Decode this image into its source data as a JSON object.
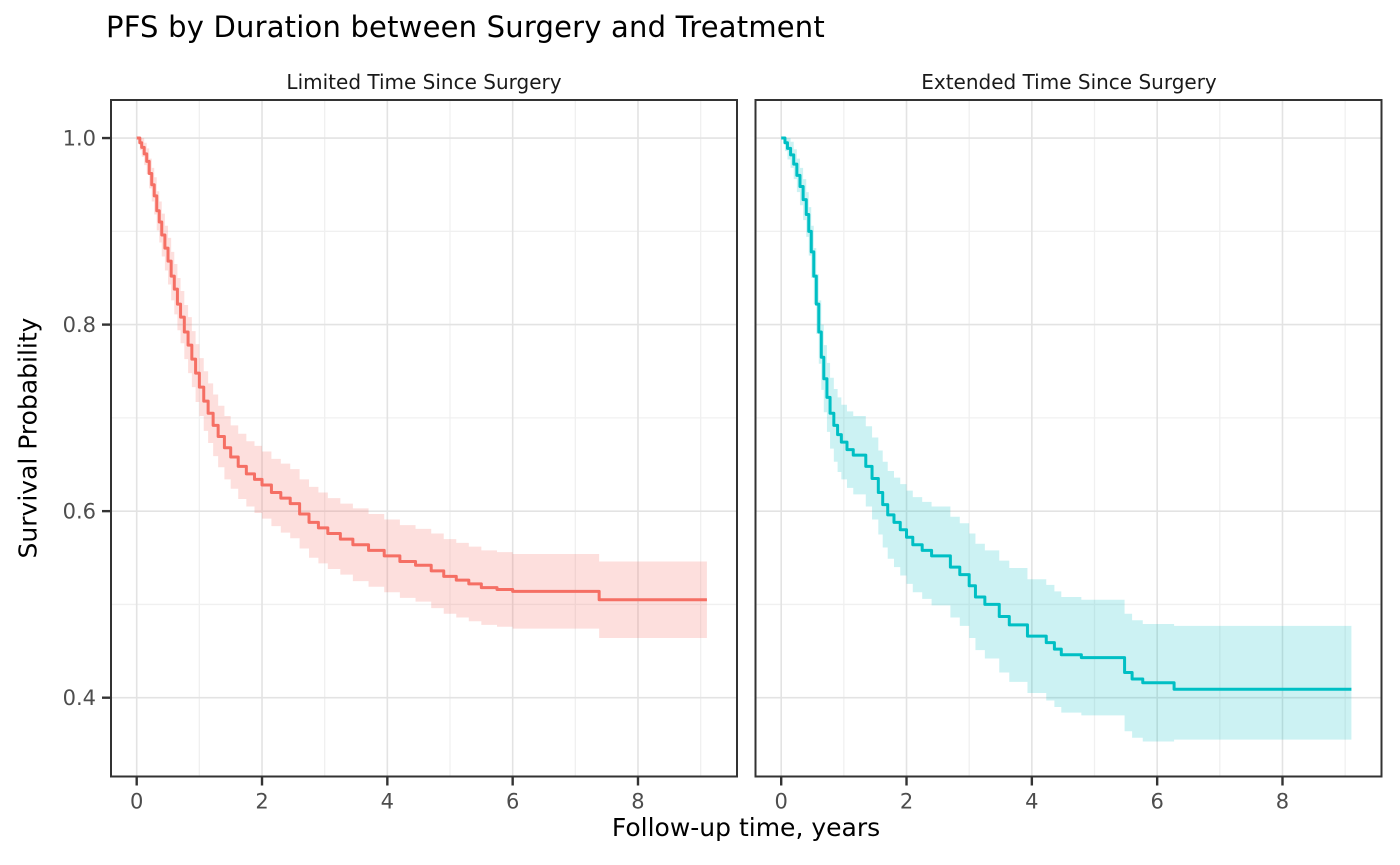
{
  "title": "PFS by Duration between Surgery and Treatment",
  "axes": {
    "x_label": "Follow-up time, years",
    "y_label": "Survival Probability"
  },
  "colors": {
    "background": "#ffffff",
    "panel_border": "#333333",
    "grid_major": "#e3e3e3",
    "grid_minor": "#f0f0f0",
    "tick_mark": "#333333",
    "tick_text": "#4d4d4d",
    "text": "#000000"
  },
  "chart_data": {
    "type": "line",
    "subtype": "kaplan-meier-step-with-confidence-ribbon",
    "title": "PFS by Duration between Surgery and Treatment",
    "xlabel": "Follow-up time, years",
    "ylabel": "Survival Probability",
    "grid": true,
    "xlim": [
      -0.41,
      9.58
    ],
    "ylim": [
      0.3155,
      1.0408
    ],
    "t_max": 9.1,
    "x_ticks": [
      0,
      2,
      4,
      6,
      8
    ],
    "x_tick_labels": [
      "0",
      "2",
      "4",
      "6",
      "8"
    ],
    "x_minor": [
      1,
      3,
      5,
      7,
      9
    ],
    "y_ticks": [
      1.0,
      0.8,
      0.6,
      0.4
    ],
    "y_tick_labels": [
      "1.0",
      "0.8",
      "0.6",
      "0.4"
    ],
    "y_minor": [
      0.9,
      0.7,
      0.5
    ],
    "panels": [
      {
        "facet_label": "Limited Time Since Surgery",
        "line_color": "#f56f64",
        "ribbon_color": "rgba(245,111,100,0.22)",
        "steps": {
          "t": [
            0,
            0.05,
            0.08,
            0.12,
            0.16,
            0.2,
            0.24,
            0.28,
            0.32,
            0.36,
            0.4,
            0.45,
            0.5,
            0.55,
            0.6,
            0.65,
            0.7,
            0.76,
            0.82,
            0.88,
            0.94,
            1,
            1.07,
            1.14,
            1.22,
            1.3,
            1.4,
            1.5,
            1.62,
            1.75,
            1.88,
            2,
            2.15,
            2.3,
            2.45,
            2.6,
            2.75,
            2.9,
            3.05,
            3.25,
            3.45,
            3.7,
            3.95,
            4.2,
            4.45,
            4.7,
            4.9,
            5.1,
            5.3,
            5.5,
            5.75,
            6,
            7.38
          ],
          "surv": [
            1,
            0.995,
            0.99,
            0.983,
            0.975,
            0.962,
            0.95,
            0.938,
            0.922,
            0.91,
            0.896,
            0.882,
            0.868,
            0.852,
            0.838,
            0.822,
            0.808,
            0.792,
            0.778,
            0.763,
            0.748,
            0.733,
            0.718,
            0.705,
            0.692,
            0.68,
            0.668,
            0.658,
            0.648,
            0.64,
            0.634,
            0.628,
            0.62,
            0.614,
            0.608,
            0.597,
            0.588,
            0.582,
            0.576,
            0.57,
            0.564,
            0.558,
            0.552,
            0.546,
            0.542,
            0.536,
            0.53,
            0.526,
            0.522,
            0.518,
            0.516,
            0.514,
            0.505
          ],
          "lower": [
            1,
            0.987,
            0.98,
            0.971,
            0.961,
            0.946,
            0.932,
            0.918,
            0.901,
            0.888,
            0.873,
            0.858,
            0.843,
            0.826,
            0.811,
            0.794,
            0.78,
            0.763,
            0.748,
            0.733,
            0.717,
            0.702,
            0.686,
            0.673,
            0.659,
            0.647,
            0.634,
            0.624,
            0.613,
            0.605,
            0.598,
            0.592,
            0.584,
            0.577,
            0.571,
            0.56,
            0.55,
            0.544,
            0.538,
            0.532,
            0.525,
            0.519,
            0.513,
            0.507,
            0.503,
            0.496,
            0.49,
            0.486,
            0.482,
            0.478,
            0.476,
            0.474,
            0.464
          ],
          "upper": [
            1,
            1,
            1,
            0.995,
            0.989,
            0.978,
            0.968,
            0.958,
            0.943,
            0.932,
            0.919,
            0.906,
            0.893,
            0.878,
            0.865,
            0.85,
            0.836,
            0.821,
            0.808,
            0.793,
            0.779,
            0.764,
            0.75,
            0.737,
            0.725,
            0.713,
            0.702,
            0.692,
            0.683,
            0.675,
            0.67,
            0.664,
            0.656,
            0.651,
            0.645,
            0.634,
            0.626,
            0.62,
            0.614,
            0.608,
            0.603,
            0.597,
            0.591,
            0.585,
            0.581,
            0.576,
            0.57,
            0.566,
            0.562,
            0.558,
            0.556,
            0.554,
            0.546
          ]
        }
      },
      {
        "facet_label": "Extended Time Since Surgery",
        "line_color": "#00bfc4",
        "ribbon_color": "rgba(0,191,196,0.20)",
        "steps": {
          "t": [
            0,
            0.06,
            0.1,
            0.15,
            0.2,
            0.25,
            0.3,
            0.35,
            0.4,
            0.44,
            0.48,
            0.52,
            0.56,
            0.6,
            0.64,
            0.68,
            0.73,
            0.78,
            0.84,
            0.9,
            0.96,
            1.05,
            1.15,
            1.35,
            1.45,
            1.55,
            1.62,
            1.7,
            1.8,
            1.9,
            2,
            2.1,
            2.25,
            2.4,
            2.7,
            2.85,
            3,
            3.1,
            3.25,
            3.48,
            3.64,
            3.93,
            4.23,
            4.36,
            4.47,
            4.79,
            5.48,
            5.6,
            5.77,
            6.27
          ],
          "surv": [
            1,
            0.995,
            0.989,
            0.982,
            0.972,
            0.96,
            0.948,
            0.934,
            0.918,
            0.9,
            0.878,
            0.852,
            0.822,
            0.792,
            0.765,
            0.742,
            0.722,
            0.705,
            0.692,
            0.682,
            0.674,
            0.666,
            0.66,
            0.648,
            0.635,
            0.62,
            0.607,
            0.596,
            0.588,
            0.58,
            0.572,
            0.564,
            0.558,
            0.552,
            0.54,
            0.532,
            0.52,
            0.508,
            0.5,
            0.487,
            0.478,
            0.466,
            0.459,
            0.452,
            0.446,
            0.443,
            0.427,
            0.42,
            0.416,
            0.409
          ],
          "lower": [
            1,
            0.986,
            0.977,
            0.968,
            0.956,
            0.942,
            0.928,
            0.912,
            0.894,
            0.874,
            0.85,
            0.822,
            0.79,
            0.758,
            0.73,
            0.706,
            0.685,
            0.667,
            0.653,
            0.642,
            0.634,
            0.625,
            0.618,
            0.605,
            0.591,
            0.575,
            0.561,
            0.549,
            0.54,
            0.531,
            0.522,
            0.513,
            0.506,
            0.499,
            0.486,
            0.477,
            0.464,
            0.451,
            0.442,
            0.427,
            0.417,
            0.405,
            0.397,
            0.39,
            0.384,
            0.381,
            0.364,
            0.357,
            0.353,
            0.355
          ],
          "upper": [
            1,
            1,
            1,
            0.996,
            0.988,
            0.978,
            0.968,
            0.956,
            0.942,
            0.926,
            0.906,
            0.882,
            0.854,
            0.826,
            0.8,
            0.778,
            0.759,
            0.743,
            0.731,
            0.722,
            0.714,
            0.707,
            0.702,
            0.691,
            0.679,
            0.665,
            0.653,
            0.643,
            0.636,
            0.629,
            0.622,
            0.615,
            0.61,
            0.605,
            0.594,
            0.587,
            0.576,
            0.565,
            0.558,
            0.547,
            0.539,
            0.527,
            0.521,
            0.514,
            0.508,
            0.505,
            0.49,
            0.483,
            0.479,
            0.477
          ]
        }
      }
    ]
  }
}
